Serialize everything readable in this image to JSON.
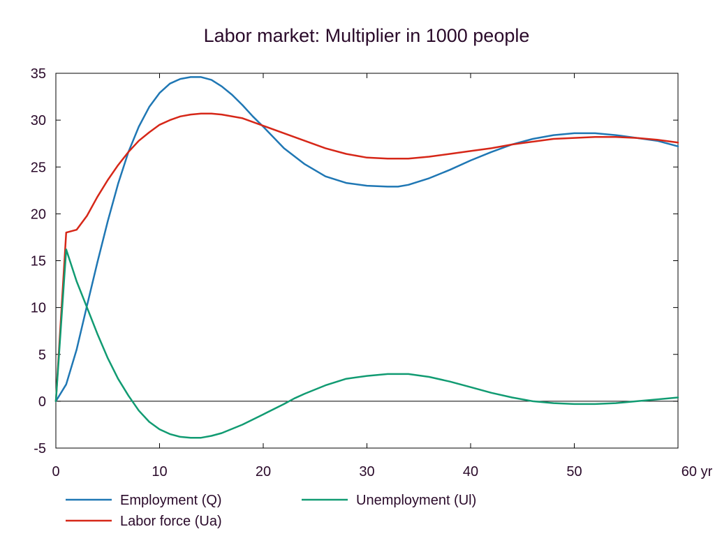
{
  "chart_data": {
    "type": "line",
    "title": "Labor market: Multiplier in 1000 people",
    "xlabel": "",
    "ylabel": "",
    "x_unit_label": "yr",
    "xlim": [
      0,
      60
    ],
    "ylim": [
      -5,
      35
    ],
    "x_ticks": [
      0,
      10,
      20,
      30,
      40,
      50,
      60
    ],
    "x_tick_labels": [
      "0",
      "10",
      "20",
      "30",
      "40",
      "50",
      "60 yr"
    ],
    "y_ticks": [
      -5,
      0,
      5,
      10,
      15,
      20,
      25,
      30,
      35
    ],
    "y_tick_labels": [
      "-5",
      "0",
      "5",
      "10",
      "15",
      "20",
      "25",
      "30",
      "35"
    ],
    "grid": false,
    "legend_position": "bottom",
    "zero_line": true,
    "series": [
      {
        "name": "Employment (Q)",
        "color": "#1f77b4",
        "x": [
          0,
          1,
          2,
          3,
          4,
          5,
          6,
          7,
          8,
          9,
          10,
          11,
          12,
          13,
          14,
          15,
          16,
          17,
          18,
          19,
          20,
          22,
          24,
          26,
          28,
          30,
          32,
          33,
          34,
          36,
          38,
          40,
          42,
          44,
          46,
          48,
          50,
          52,
          54,
          56,
          58,
          60
        ],
        "values": [
          0,
          1.8,
          5.5,
          10.2,
          14.8,
          19.2,
          23.2,
          26.6,
          29.3,
          31.4,
          32.9,
          33.9,
          34.4,
          34.6,
          34.6,
          34.3,
          33.6,
          32.7,
          31.6,
          30.4,
          29.3,
          27.0,
          25.3,
          24.0,
          23.3,
          23.0,
          22.9,
          22.9,
          23.1,
          23.8,
          24.7,
          25.7,
          26.6,
          27.4,
          28.0,
          28.4,
          28.6,
          28.6,
          28.4,
          28.1,
          27.8,
          27.2
        ]
      },
      {
        "name": "Labor force (Ua)",
        "color": "#d62718",
        "x": [
          0,
          1,
          2,
          3,
          4,
          5,
          6,
          7,
          8,
          9,
          10,
          11,
          12,
          13,
          14,
          15,
          16,
          18,
          20,
          22,
          24,
          26,
          28,
          30,
          32,
          34,
          36,
          38,
          40,
          42,
          44,
          46,
          48,
          50,
          52,
          54,
          56,
          58,
          60
        ],
        "values": [
          0,
          18.0,
          18.3,
          19.8,
          21.8,
          23.6,
          25.2,
          26.6,
          27.8,
          28.7,
          29.5,
          30.0,
          30.4,
          30.6,
          30.7,
          30.7,
          30.6,
          30.2,
          29.4,
          28.6,
          27.8,
          27.0,
          26.4,
          26.0,
          25.9,
          25.9,
          26.1,
          26.4,
          26.7,
          27.0,
          27.4,
          27.7,
          28.0,
          28.1,
          28.2,
          28.2,
          28.1,
          27.9,
          27.6
        ]
      },
      {
        "name": "Unemployment (Ul)",
        "color": "#119b72",
        "x": [
          0,
          1,
          2,
          3,
          4,
          5,
          6,
          7,
          8,
          9,
          10,
          11,
          12,
          13,
          14,
          15,
          16,
          18,
          20,
          22,
          23,
          24,
          26,
          28,
          30,
          32,
          33,
          34,
          36,
          38,
          40,
          42,
          44,
          46,
          48,
          50,
          52,
          54,
          56,
          58,
          60
        ],
        "values": [
          0,
          16.2,
          12.8,
          10.0,
          7.2,
          4.6,
          2.4,
          0.6,
          -1.0,
          -2.2,
          -3.0,
          -3.5,
          -3.8,
          -3.9,
          -3.9,
          -3.7,
          -3.4,
          -2.5,
          -1.4,
          -0.3,
          0.3,
          0.8,
          1.7,
          2.4,
          2.7,
          2.9,
          2.9,
          2.9,
          2.6,
          2.1,
          1.5,
          0.9,
          0.4,
          0.0,
          -0.2,
          -0.3,
          -0.3,
          -0.2,
          0.0,
          0.2,
          0.4
        ]
      }
    ]
  }
}
